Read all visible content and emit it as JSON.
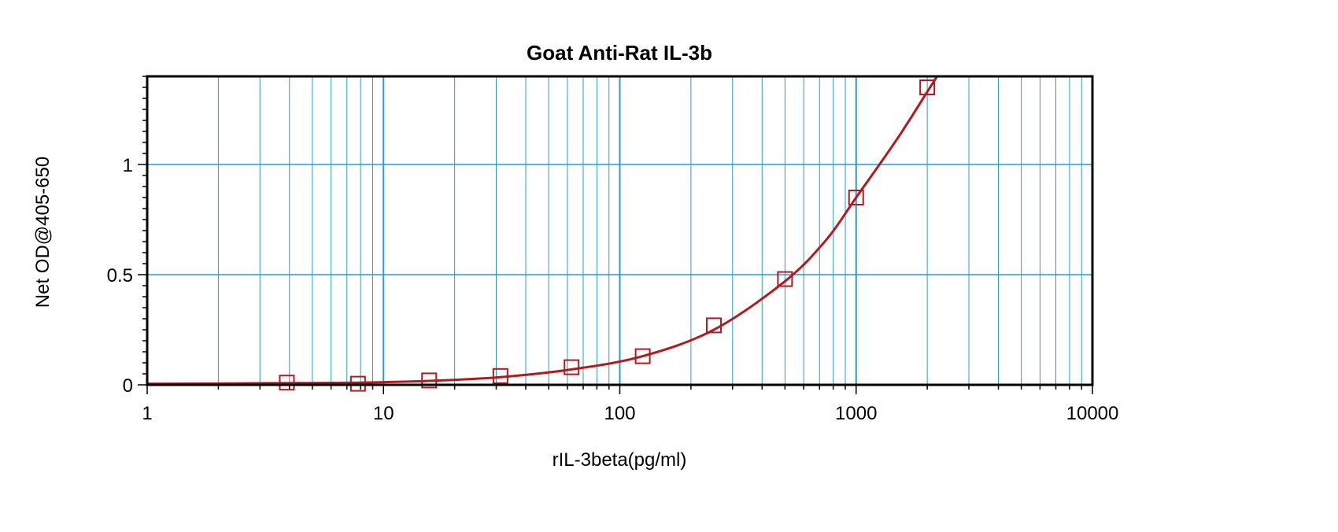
{
  "chart_data": {
    "type": "scatter",
    "title": "Goat Anti-Rat IL-3b",
    "xlabel": "rIL-3beta(pg/ml)",
    "ylabel": "Net OD@405-650",
    "x_scale": "log",
    "xlim": [
      1,
      10000
    ],
    "ylim": [
      0,
      1.4
    ],
    "x_ticks": [
      1,
      10,
      100,
      1000,
      10000
    ],
    "x_tick_labels": [
      "1",
      "10",
      "100",
      "1000",
      "10000"
    ],
    "y_ticks": [
      0,
      0.5,
      1
    ],
    "y_tick_labels": [
      "0",
      "0.5",
      "1"
    ],
    "grid": true,
    "legend": "none",
    "colors": {
      "series": "#b3191e",
      "grid": "#2a9cc8",
      "frame": "#000000"
    },
    "series": [
      {
        "marker": "square",
        "x": [
          3.9,
          7.8,
          15.6,
          31.25,
          62.5,
          125,
          250,
          500,
          1000,
          2000
        ],
        "y": [
          0.01,
          0.005,
          0.02,
          0.04,
          0.08,
          0.13,
          0.27,
          0.48,
          0.85,
          1.35
        ]
      }
    ],
    "fit_curve": {
      "x": [
        1,
        2,
        3.9,
        7.8,
        15.6,
        31.25,
        62.5,
        125,
        250,
        500,
        750,
        1000,
        1500,
        2000,
        2200
      ],
      "y": [
        0.005,
        0.006,
        0.008,
        0.01,
        0.018,
        0.035,
        0.07,
        0.13,
        0.25,
        0.47,
        0.66,
        0.85,
        1.12,
        1.33,
        1.4
      ]
    }
  }
}
